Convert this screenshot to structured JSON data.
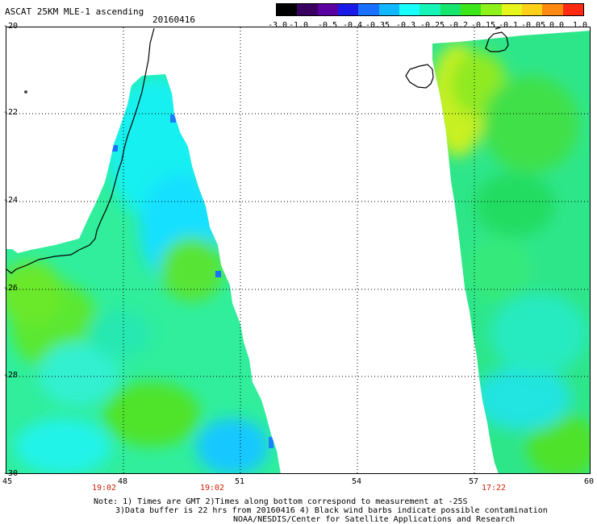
{
  "header": {
    "title": "ASCAT 25KM MLE-1 ascending",
    "date": "20160416"
  },
  "colorbar": {
    "colors": [
      "#000000",
      "#3a0060",
      "#5a00a0",
      "#1a1ae8",
      "#1a70ff",
      "#12b8ff",
      "#18ffff",
      "#16f5b8",
      "#16e66e",
      "#3ce61a",
      "#8ef21a",
      "#e6f51a",
      "#ffd018",
      "#ff8810",
      "#ff2a10"
    ],
    "labels": [
      "-3.0",
      "-1.0",
      "-0.5",
      "-0.4",
      "-0.35",
      "-0.3",
      "-0.25",
      "-0.2",
      "-0.15",
      "-0.1",
      "-0.05",
      "0.0",
      "1.0"
    ]
  },
  "axes": {
    "lat_labels": [
      "-20",
      "-22",
      "-24",
      "-26",
      "-28",
      "-30"
    ],
    "lon_labels": [
      "45",
      "48",
      "51",
      "54",
      "57",
      "60"
    ],
    "time_labels": [
      "19:02",
      "19:02",
      "17:22"
    ]
  },
  "notes": {
    "line1": "Note: 1) Times are GMT 2)Times along bottom correspond to measurement at -25S",
    "line2": "3)Data buffer is 22 hrs from 20160416 4) Black wind barbs indicate possible contamination",
    "line3": "NOAA/NESDIS/Center for Satellite Applications and Research"
  }
}
